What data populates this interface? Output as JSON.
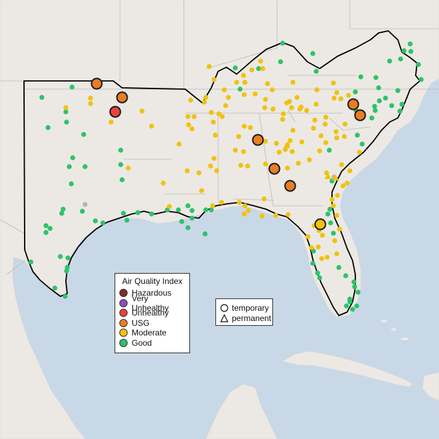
{
  "legend": {
    "title": "Air Quality Index",
    "categories": [
      {
        "key": "hazardous",
        "label": "Hazardous",
        "color": "#7e2c2c"
      },
      {
        "key": "very_unhealthy",
        "label": "Very Unhealthy",
        "color": "#8f4bbf"
      },
      {
        "key": "unhealthy",
        "label": "Unhealthy",
        "color": "#e8423c"
      },
      {
        "key": "usg",
        "label": "USG",
        "color": "#e87d24"
      },
      {
        "key": "moderate",
        "label": "Moderate",
        "color": "#f0c20f"
      },
      {
        "key": "good",
        "label": "Good",
        "color": "#2ec26a"
      }
    ]
  },
  "monitor_types": {
    "temporary": "temporary",
    "permanent": "permanent"
  },
  "colors": {
    "ocean": "#c9d8e6",
    "land": "#ece9e4",
    "region_outline": "#000000",
    "state_lines": "#b8b8b8",
    "unknown_monitor": "#b4b4b4"
  }
}
